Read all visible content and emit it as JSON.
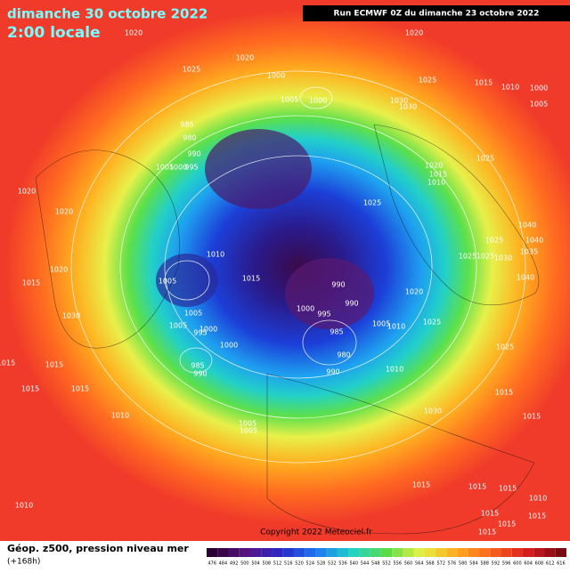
{
  "header": {
    "title": "dimanche 30 octobre 2022",
    "subtitle": "2:00 locale",
    "run": "Run ECMWF 0Z du dimanche 23 octobre 2022"
  },
  "copyright": "Copyright 2022 Meteociel.fr",
  "caption": {
    "title": "Géop. z500, pression niveau mer",
    "lead": "(+168h)"
  },
  "scale_labels": [
    "476",
    "484",
    "492",
    "500",
    "504",
    "508",
    "512",
    "516",
    "520",
    "524",
    "528",
    "532",
    "536",
    "540",
    "544",
    "548",
    "552",
    "556",
    "560",
    "564",
    "568",
    "572",
    "576",
    "580",
    "584",
    "588",
    "592",
    "596",
    "600",
    "604",
    "608",
    "612",
    "616"
  ],
  "isobar_labels": [
    "1020",
    "1020",
    "1025",
    "1020",
    "1000",
    "1005",
    "1000",
    "1025",
    "1015",
    "1010",
    "1000",
    "1005",
    "1030",
    "1030",
    "985",
    "980",
    "990",
    "1005",
    "1000",
    "995",
    "1025",
    "1020",
    "1015",
    "1010",
    "1025",
    "1020",
    "1020",
    "1040",
    "1040",
    "1035",
    "1025",
    "1030",
    "1025",
    "1025",
    "1040",
    "1020",
    "1015",
    "1010",
    "1015",
    "1005",
    "990",
    "990",
    "1020",
    "1000",
    "995",
    "1005",
    "1005",
    "1000",
    "995",
    "1030",
    "1025",
    "1005",
    "1010",
    "985",
    "1000",
    "980",
    "1015",
    "1015",
    "985",
    "990",
    "990",
    "1010",
    "1025",
    "1015",
    "1015",
    "1015",
    "1030",
    "1015",
    "1010",
    "1005",
    "1005",
    "1015",
    "1015",
    "1015",
    "1010",
    "1015",
    "1015",
    "1015",
    "1015",
    "1010"
  ]
}
